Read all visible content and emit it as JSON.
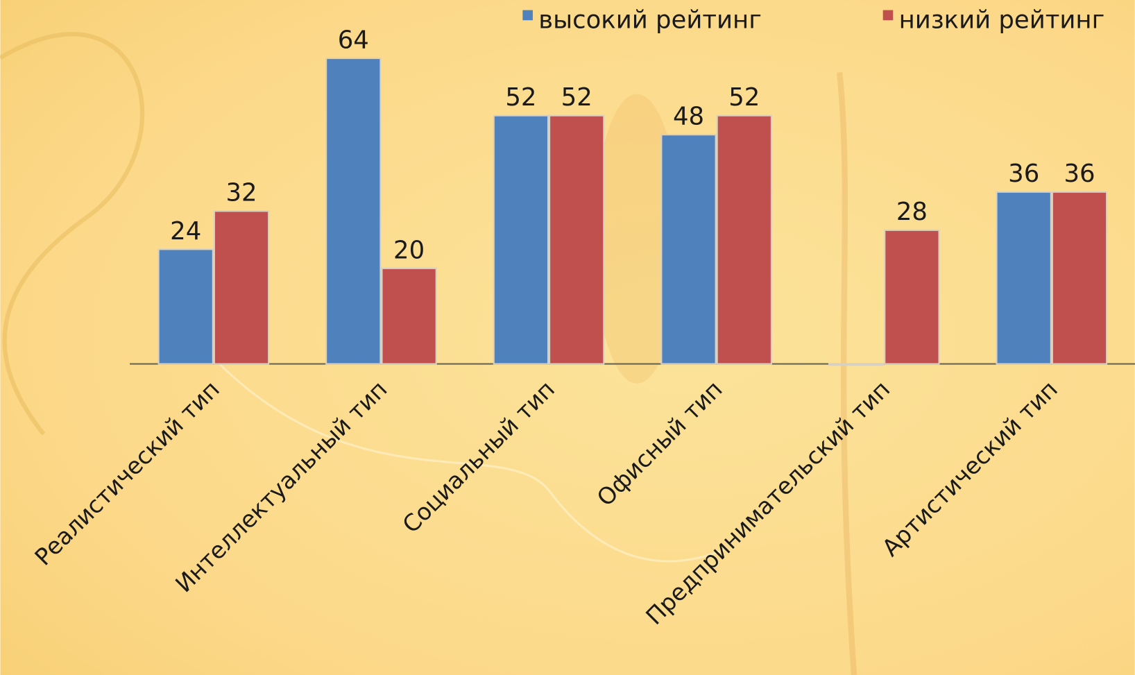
{
  "chart_data": {
    "type": "bar",
    "categories": [
      "Реалистический тип",
      "Интеллектуальный тип",
      "Социальный тип",
      "Офисный тип",
      "Предпринимательский тип",
      "Артистический тип"
    ],
    "series": [
      {
        "name": "высокий рейтинг",
        "color": "#4f81bd",
        "values": [
          24,
          64,
          52,
          48,
          0,
          36
        ]
      },
      {
        "name": "низкий рейтинг",
        "color": "#c0504d",
        "values": [
          32,
          20,
          52,
          52,
          28,
          36
        ]
      }
    ],
    "ylim": [
      0,
      70
    ],
    "grid": false,
    "legend": "top-right"
  }
}
